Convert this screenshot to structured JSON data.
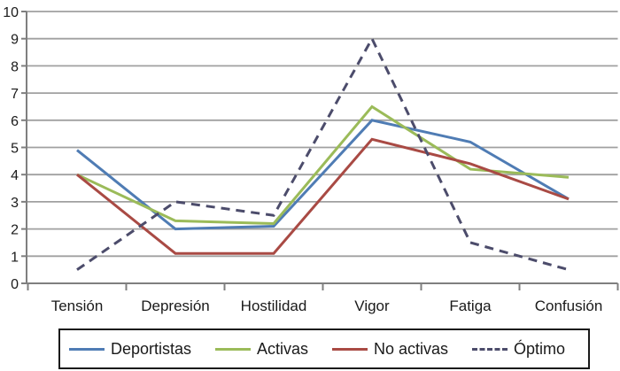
{
  "chart_data": {
    "type": "line",
    "categories": [
      "Tensión",
      "Depresión",
      "Hostilidad",
      "Vigor",
      "Fatiga",
      "Confusión"
    ],
    "series": [
      {
        "name": "Deportistas",
        "values": [
          4.9,
          2.0,
          2.1,
          6.0,
          5.2,
          3.1
        ],
        "color": "#4f7cb4",
        "line_style": "solid"
      },
      {
        "name": "Activas",
        "values": [
          4.0,
          2.3,
          2.2,
          6.5,
          4.2,
          3.9
        ],
        "color": "#9bbb59",
        "line_style": "solid"
      },
      {
        "name": "No activas",
        "values": [
          4.0,
          1.1,
          1.1,
          5.3,
          4.4,
          3.1
        ],
        "color": "#a94a44",
        "line_style": "solid"
      },
      {
        "name": "Óptimo",
        "values": [
          0.5,
          3.0,
          2.5,
          9.0,
          1.5,
          0.5
        ],
        "color": "#4c4c6b",
        "line_style": "dashed"
      }
    ],
    "title": "",
    "xlabel": "",
    "ylabel": "",
    "ylim": [
      0,
      10
    ],
    "ytick_step": 1,
    "ytick_labels": [
      "0",
      "1",
      "2",
      "3",
      "4",
      "5",
      "6",
      "7",
      "8",
      "9",
      "10"
    ],
    "grid": "horizontal",
    "gridline_color": "#a0a0a0",
    "axis_color": "#7f7f7f",
    "legend_position": "bottom",
    "legend_border_color": "#1a1a1a"
  }
}
